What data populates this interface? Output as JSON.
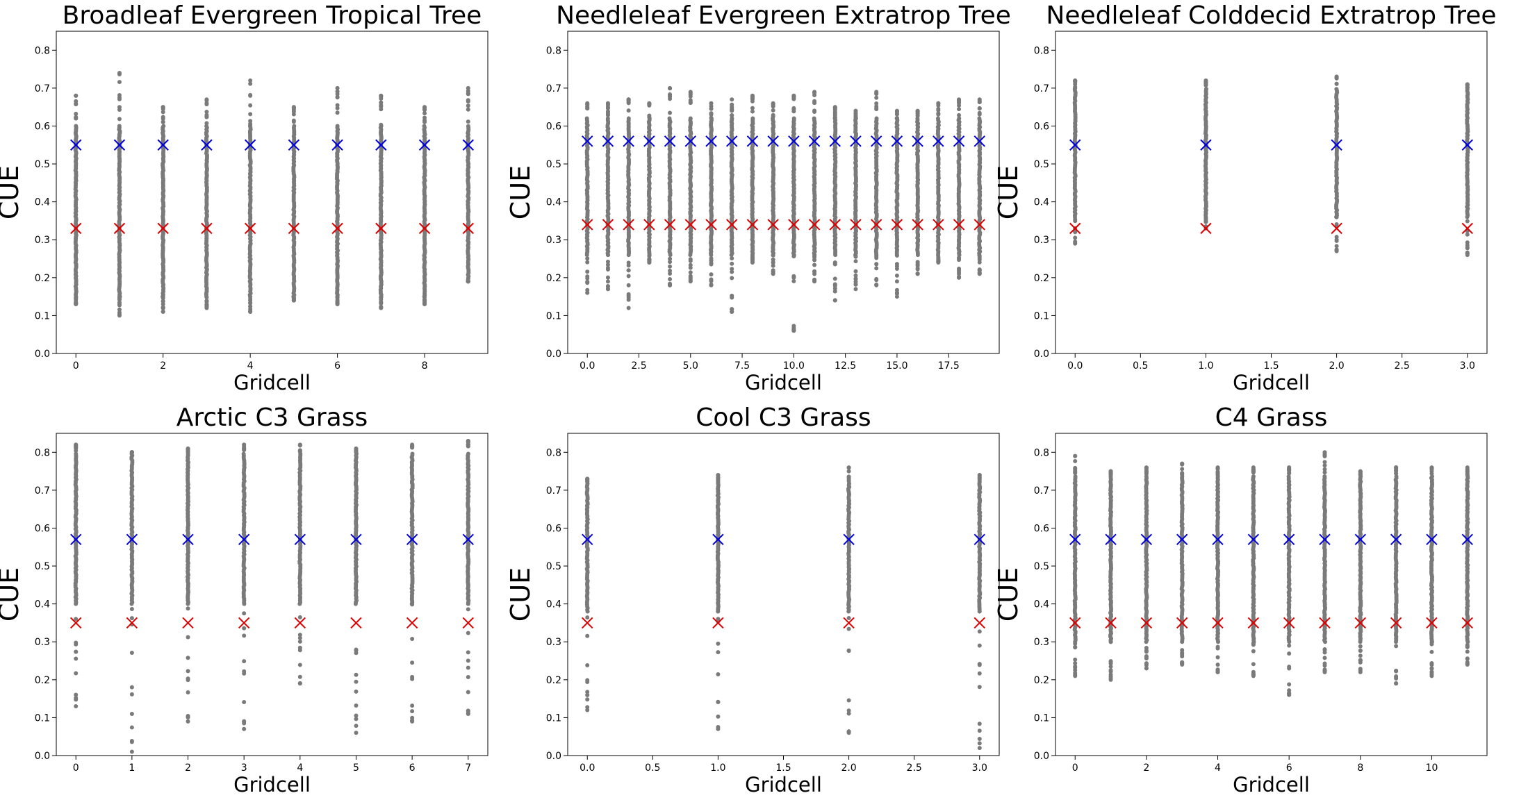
{
  "colors": {
    "points": "#7a7a7a",
    "mean_marker": "#0000dd",
    "low_marker": "#dd0000",
    "axes": "#000000"
  },
  "chart_data": [
    {
      "type": "scatter",
      "title": "Broadleaf Evergreen Tropical Tree",
      "xlabel": "Gridcell",
      "ylabel": "CUE",
      "ylim": [
        0,
        0.85
      ],
      "xlim": [
        -0.45,
        9.45
      ],
      "yticks": [
        0.0,
        0.1,
        0.2,
        0.3,
        0.4,
        0.5,
        0.6,
        0.7,
        0.8
      ],
      "xticks": [
        0,
        2,
        4,
        6,
        8
      ],
      "xtick_labels": [
        "0",
        "2",
        "4",
        "6",
        "8"
      ],
      "grid": false,
      "gridcells": [
        0,
        1,
        2,
        3,
        4,
        5,
        6,
        7,
        8,
        9
      ],
      "point_min": [
        0.13,
        0.1,
        0.11,
        0.12,
        0.11,
        0.14,
        0.13,
        0.12,
        0.13,
        0.19
      ],
      "point_max": [
        0.68,
        0.74,
        0.65,
        0.67,
        0.72,
        0.65,
        0.7,
        0.68,
        0.65,
        0.7
      ],
      "dense_range": [
        0.15,
        0.6
      ],
      "blue_marker_y": 0.55,
      "red_marker_y": 0.33
    },
    {
      "type": "scatter",
      "title": "Needleleaf Evergreen Extratrop Tree",
      "xlabel": "Gridcell",
      "ylabel": "CUE",
      "ylim": [
        0,
        0.85
      ],
      "xlim": [
        -0.95,
        19.95
      ],
      "yticks": [
        0.0,
        0.1,
        0.2,
        0.3,
        0.4,
        0.5,
        0.6,
        0.7,
        0.8
      ],
      "xticks": [
        0,
        2.5,
        5,
        7.5,
        10,
        12.5,
        15,
        17.5
      ],
      "xtick_labels": [
        "0.0",
        "2.5",
        "5.0",
        "7.5",
        "10.0",
        "12.5",
        "15.0",
        "17.5"
      ],
      "grid": false,
      "gridcells": [
        0,
        1,
        2,
        3,
        4,
        5,
        6,
        7,
        8,
        9,
        10,
        11,
        12,
        13,
        14,
        15,
        16,
        17,
        18,
        19
      ],
      "point_min": [
        0.16,
        0.17,
        0.12,
        0.24,
        0.18,
        0.19,
        0.18,
        0.11,
        0.24,
        0.21,
        0.06,
        0.19,
        0.14,
        0.17,
        0.18,
        0.15,
        0.21,
        0.24,
        0.2,
        0.21
      ],
      "point_max": [
        0.66,
        0.66,
        0.67,
        0.66,
        0.7,
        0.69,
        0.66,
        0.67,
        0.68,
        0.66,
        0.68,
        0.69,
        0.65,
        0.64,
        0.69,
        0.64,
        0.64,
        0.66,
        0.67,
        0.67
      ],
      "dense_range": [
        0.26,
        0.62
      ],
      "blue_marker_y": 0.56,
      "red_marker_y": 0.34
    },
    {
      "type": "scatter",
      "title": "Needleleaf Colddecid Extratrop Tree",
      "xlabel": "Gridcell",
      "ylabel": "CUE",
      "ylim": [
        0,
        0.85
      ],
      "xlim": [
        -0.15,
        3.15
      ],
      "yticks": [
        0.0,
        0.1,
        0.2,
        0.3,
        0.4,
        0.5,
        0.6,
        0.7,
        0.8
      ],
      "xticks": [
        0,
        0.5,
        1,
        1.5,
        2,
        2.5,
        3
      ],
      "xtick_labels": [
        "0.0",
        "0.5",
        "1.0",
        "1.5",
        "2.0",
        "2.5",
        "3.0"
      ],
      "grid": false,
      "gridcells": [
        0,
        1,
        2,
        3
      ],
      "point_min": [
        0.29,
        0.33,
        0.27,
        0.26
      ],
      "point_max": [
        0.72,
        0.72,
        0.73,
        0.71
      ],
      "dense_range": [
        0.36,
        0.7
      ],
      "blue_marker_y": 0.55,
      "red_marker_y": 0.33
    },
    {
      "type": "scatter",
      "title": "Arctic C3 Grass",
      "xlabel": "Gridcell",
      "ylabel": "CUE",
      "ylim": [
        0,
        0.85
      ],
      "xlim": [
        -0.35,
        7.35
      ],
      "yticks": [
        0.0,
        0.1,
        0.2,
        0.3,
        0.4,
        0.5,
        0.6,
        0.7,
        0.8
      ],
      "xticks": [
        0,
        1,
        2,
        3,
        4,
        5,
        6,
        7
      ],
      "xtick_labels": [
        "0",
        "1",
        "2",
        "3",
        "4",
        "5",
        "6",
        "7"
      ],
      "grid": false,
      "gridcells": [
        0,
        1,
        2,
        3,
        4,
        5,
        6,
        7
      ],
      "point_min": [
        0.13,
        0.01,
        0.09,
        0.07,
        0.19,
        0.06,
        0.09,
        0.11
      ],
      "point_max": [
        0.82,
        0.8,
        0.81,
        0.82,
        0.82,
        0.81,
        0.82,
        0.83
      ],
      "dense_range": [
        0.4,
        0.8
      ],
      "blue_marker_y": 0.57,
      "red_marker_y": 0.35
    },
    {
      "type": "scatter",
      "title": "Cool C3 Grass",
      "xlabel": "Gridcell",
      "ylabel": "CUE",
      "ylim": [
        0,
        0.85
      ],
      "xlim": [
        -0.15,
        3.15
      ],
      "yticks": [
        0.0,
        0.1,
        0.2,
        0.3,
        0.4,
        0.5,
        0.6,
        0.7,
        0.8
      ],
      "xticks": [
        0,
        0.5,
        1,
        1.5,
        2,
        2.5,
        3
      ],
      "xtick_labels": [
        "0.0",
        "0.5",
        "1.0",
        "1.5",
        "2.0",
        "2.5",
        "3.0"
      ],
      "grid": false,
      "gridcells": [
        0,
        1,
        2,
        3
      ],
      "point_min": [
        0.12,
        0.07,
        0.06,
        0.02
      ],
      "point_max": [
        0.73,
        0.74,
        0.76,
        0.74
      ],
      "dense_range": [
        0.38,
        0.72
      ],
      "blue_marker_y": 0.57,
      "red_marker_y": 0.35
    },
    {
      "type": "scatter",
      "title": "C4 Grass",
      "xlabel": "Gridcell",
      "ylabel": "CUE",
      "ylim": [
        0,
        0.85
      ],
      "xlim": [
        -0.55,
        11.55
      ],
      "yticks": [
        0.0,
        0.1,
        0.2,
        0.3,
        0.4,
        0.5,
        0.6,
        0.7,
        0.8
      ],
      "xticks": [
        0,
        2,
        4,
        6,
        8,
        10
      ],
      "xtick_labels": [
        "0",
        "2",
        "4",
        "6",
        "8",
        "10"
      ],
      "grid": false,
      "gridcells": [
        0,
        1,
        2,
        3,
        4,
        5,
        6,
        7,
        8,
        9,
        10,
        11
      ],
      "point_min": [
        0.21,
        0.2,
        0.23,
        0.24,
        0.22,
        0.21,
        0.16,
        0.22,
        0.22,
        0.19,
        0.21,
        0.24
      ],
      "point_max": [
        0.79,
        0.75,
        0.76,
        0.77,
        0.76,
        0.76,
        0.76,
        0.8,
        0.75,
        0.76,
        0.76,
        0.76
      ],
      "dense_range": [
        0.3,
        0.74
      ],
      "blue_marker_y": 0.57,
      "red_marker_y": 0.35
    }
  ]
}
